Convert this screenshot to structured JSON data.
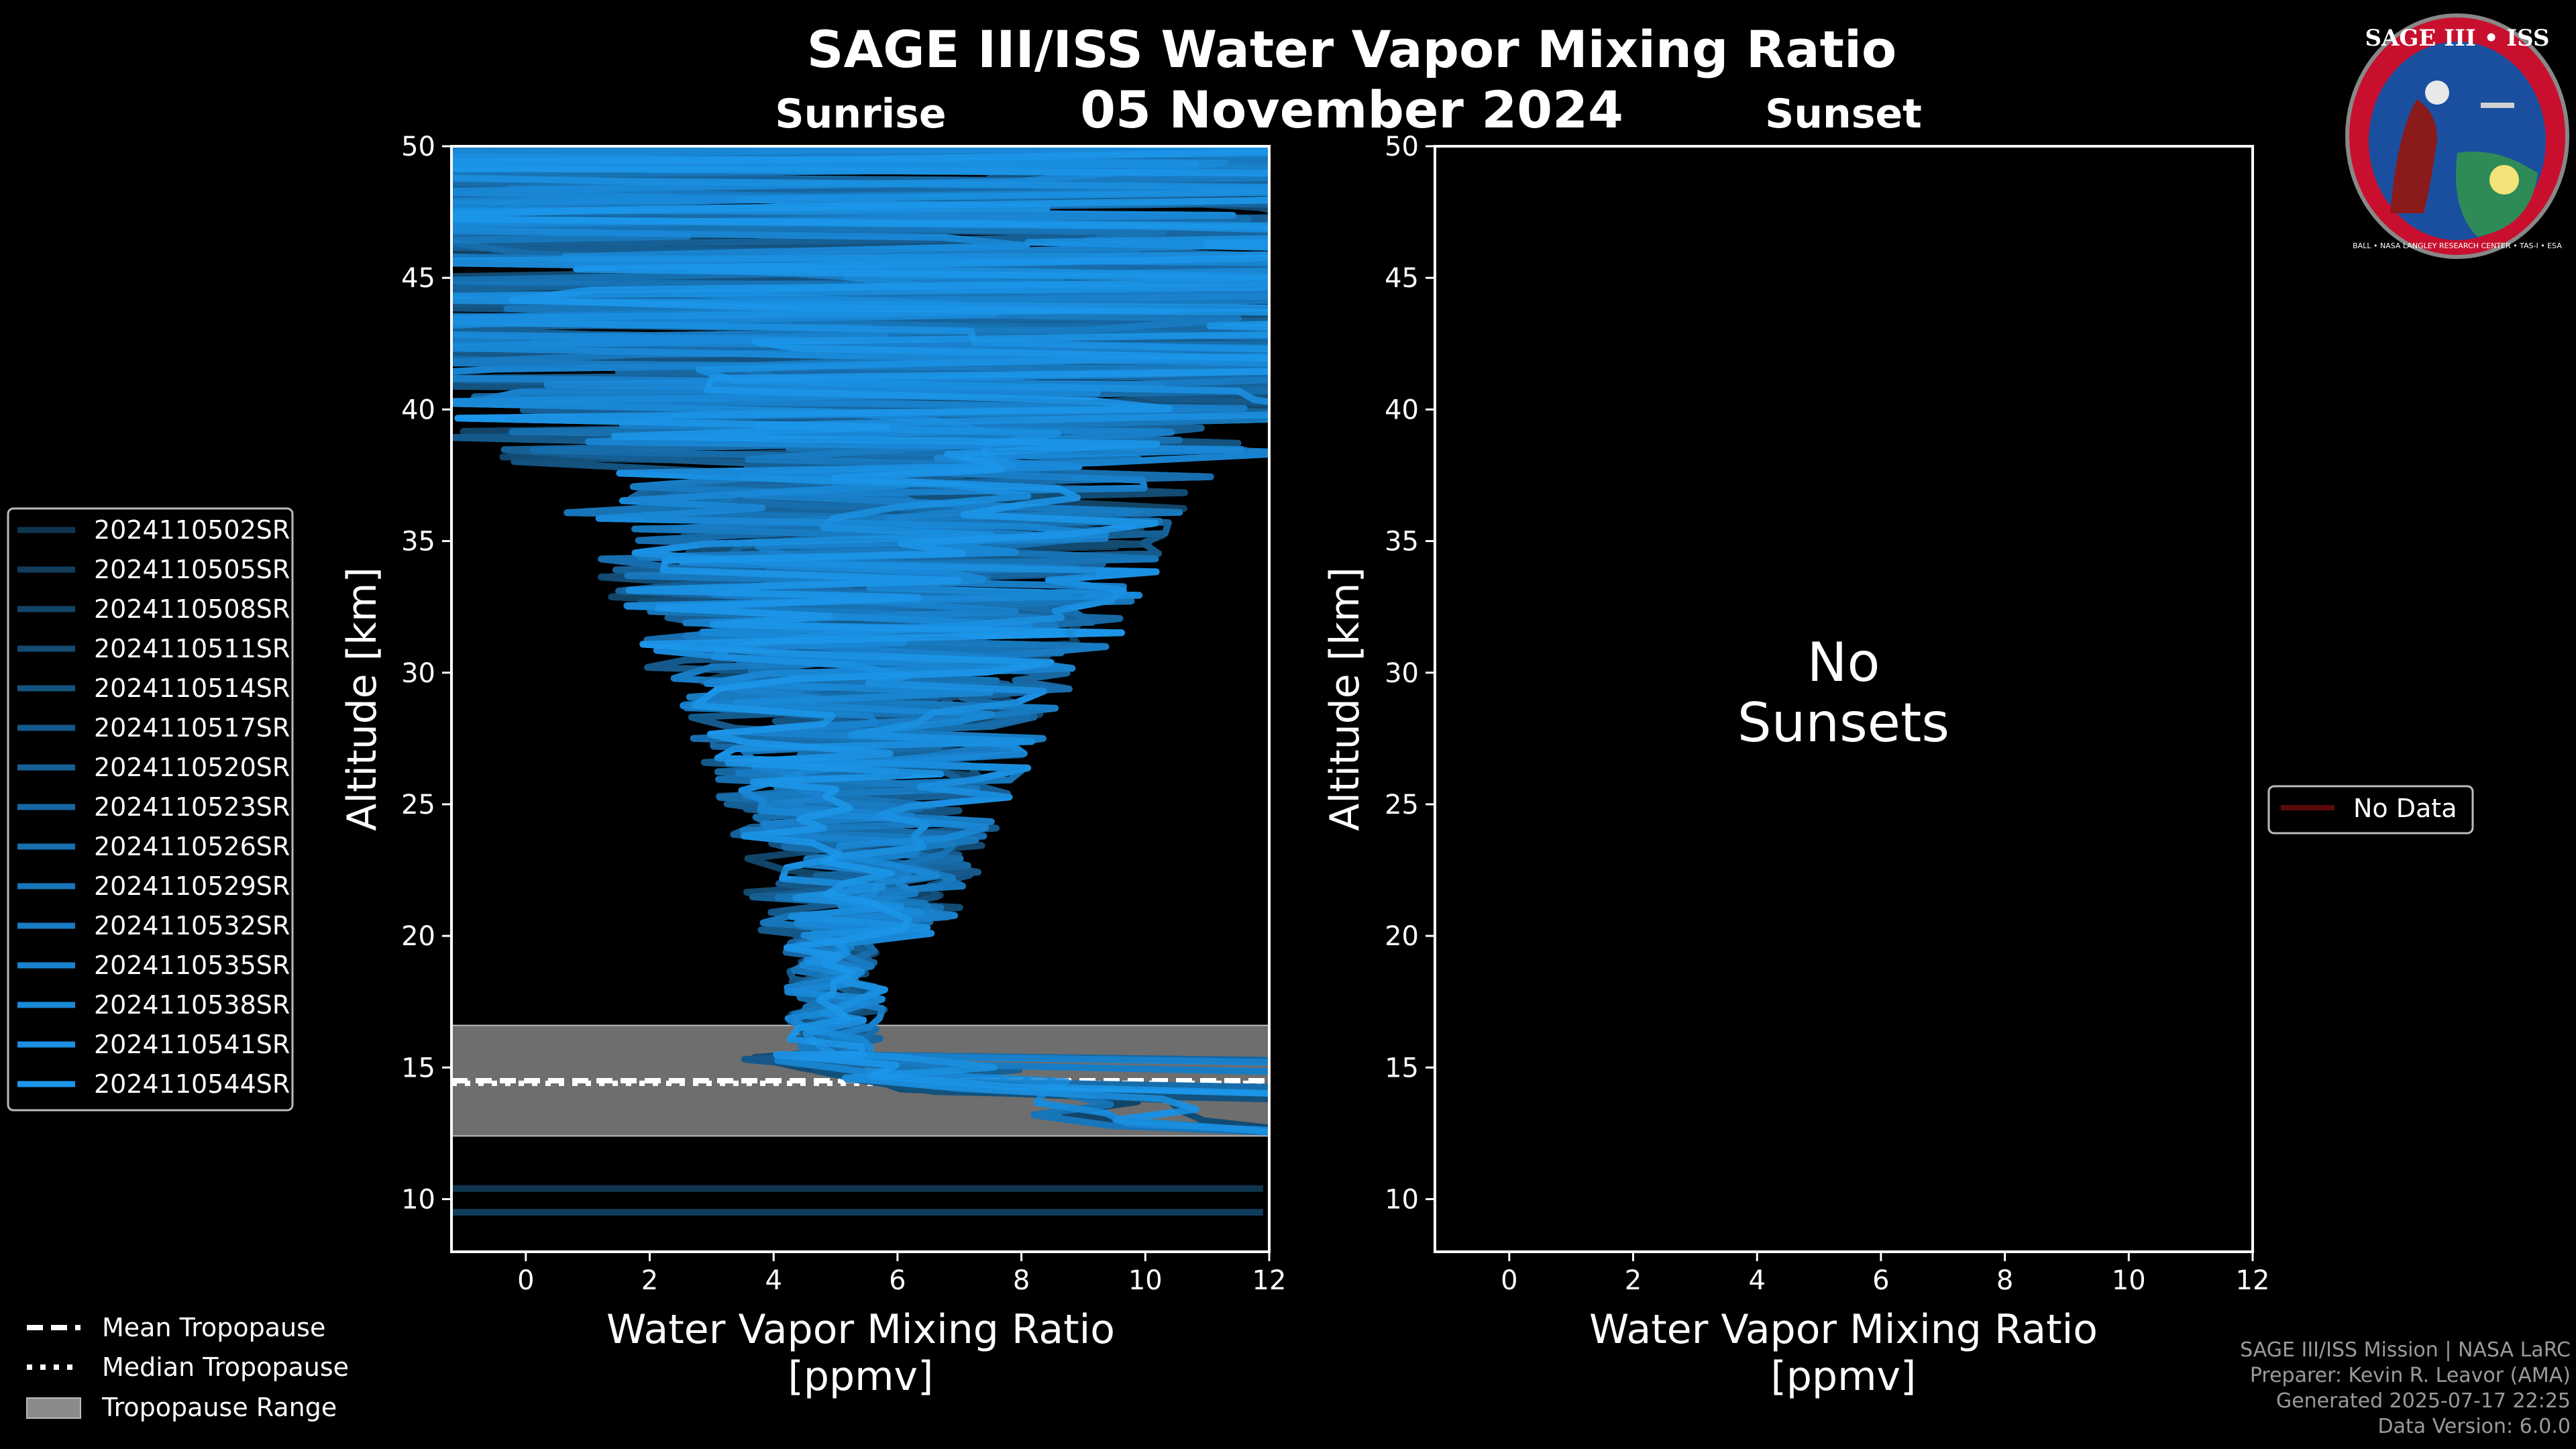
{
  "header": {
    "title": "SAGE III/ISS Water Vapor Mixing Ratio",
    "date": "05 November 2024",
    "left_label": "Sunrise",
    "right_label": "Sunset"
  },
  "chart_data": [
    {
      "type": "line",
      "panel": "sunrise",
      "xlabel": "Water Vapor Mixing Ratio",
      "xunit": "[ppmv]",
      "ylabel": "Altitude [km]",
      "xlim": [
        -1.2,
        12
      ],
      "ylim": [
        8,
        50
      ],
      "xticks": [
        0,
        2,
        4,
        6,
        8,
        10,
        12
      ],
      "yticks": [
        10,
        15,
        20,
        25,
        30,
        35,
        40,
        45,
        50
      ],
      "grid": false,
      "legend_position": "left",
      "series": [
        {
          "name": "2024110502SR",
          "color": "#0f3550"
        },
        {
          "name": "2024110505SR",
          "color": "#113c5c"
        },
        {
          "name": "2024110508SR",
          "color": "#124467"
        },
        {
          "name": "2024110511SR",
          "color": "#134b73"
        },
        {
          "name": "2024110514SR",
          "color": "#14527f"
        },
        {
          "name": "2024110517SR",
          "color": "#15598b"
        },
        {
          "name": "2024110520SR",
          "color": "#166096"
        },
        {
          "name": "2024110523SR",
          "color": "#1767a2"
        },
        {
          "name": "2024110526SR",
          "color": "#186eae"
        },
        {
          "name": "2024110529SR",
          "color": "#1875b9"
        },
        {
          "name": "2024110532SR",
          "color": "#197cc4"
        },
        {
          "name": "2024110535SR",
          "color": "#1a83cf"
        },
        {
          "name": "2024110538SR",
          "color": "#1a8ad9"
        },
        {
          "name": "2024110541SR",
          "color": "#1b90e2"
        },
        {
          "name": "2024110544SR",
          "color": "#1c96ea"
        }
      ],
      "tropopause": {
        "mean": 14.5,
        "median": 14.4,
        "range": [
          12.4,
          16.6
        ]
      },
      "tropopause_legend": [
        "Mean Tropopause",
        "Median Tropopause",
        "Tropopause Range"
      ]
    },
    {
      "type": "line",
      "panel": "sunset",
      "xlabel": "Water Vapor Mixing Ratio",
      "xunit": "[ppmv]",
      "ylabel": "Altitude [km]",
      "xlim": [
        -1.2,
        12
      ],
      "ylim": [
        8,
        50
      ],
      "xticks": [
        0,
        2,
        4,
        6,
        8,
        10,
        12
      ],
      "yticks": [
        10,
        15,
        20,
        25,
        30,
        35,
        40,
        45,
        50
      ],
      "grid": false,
      "message_line1": "No",
      "message_line2": "Sunsets",
      "series": [
        {
          "name": "No Data",
          "color": "#5a0a0a"
        }
      ]
    }
  ],
  "footer": {
    "line1": "SAGE III/ISS Mission | NASA LaRC",
    "line2": "Preparer: Kevin R. Leavor (AMA)",
    "line3": "Generated 2025-07-17 22:25",
    "line4": "Data Version: 6.0.0"
  },
  "logo": {
    "title": "SAGE III • ISS",
    "ring_text": "BALL • NASA LANGLEY RESEARCH CENTER • TAS-I • ESA",
    "ring_color": "#c8102e",
    "inner_color": "#1a4fa0"
  }
}
